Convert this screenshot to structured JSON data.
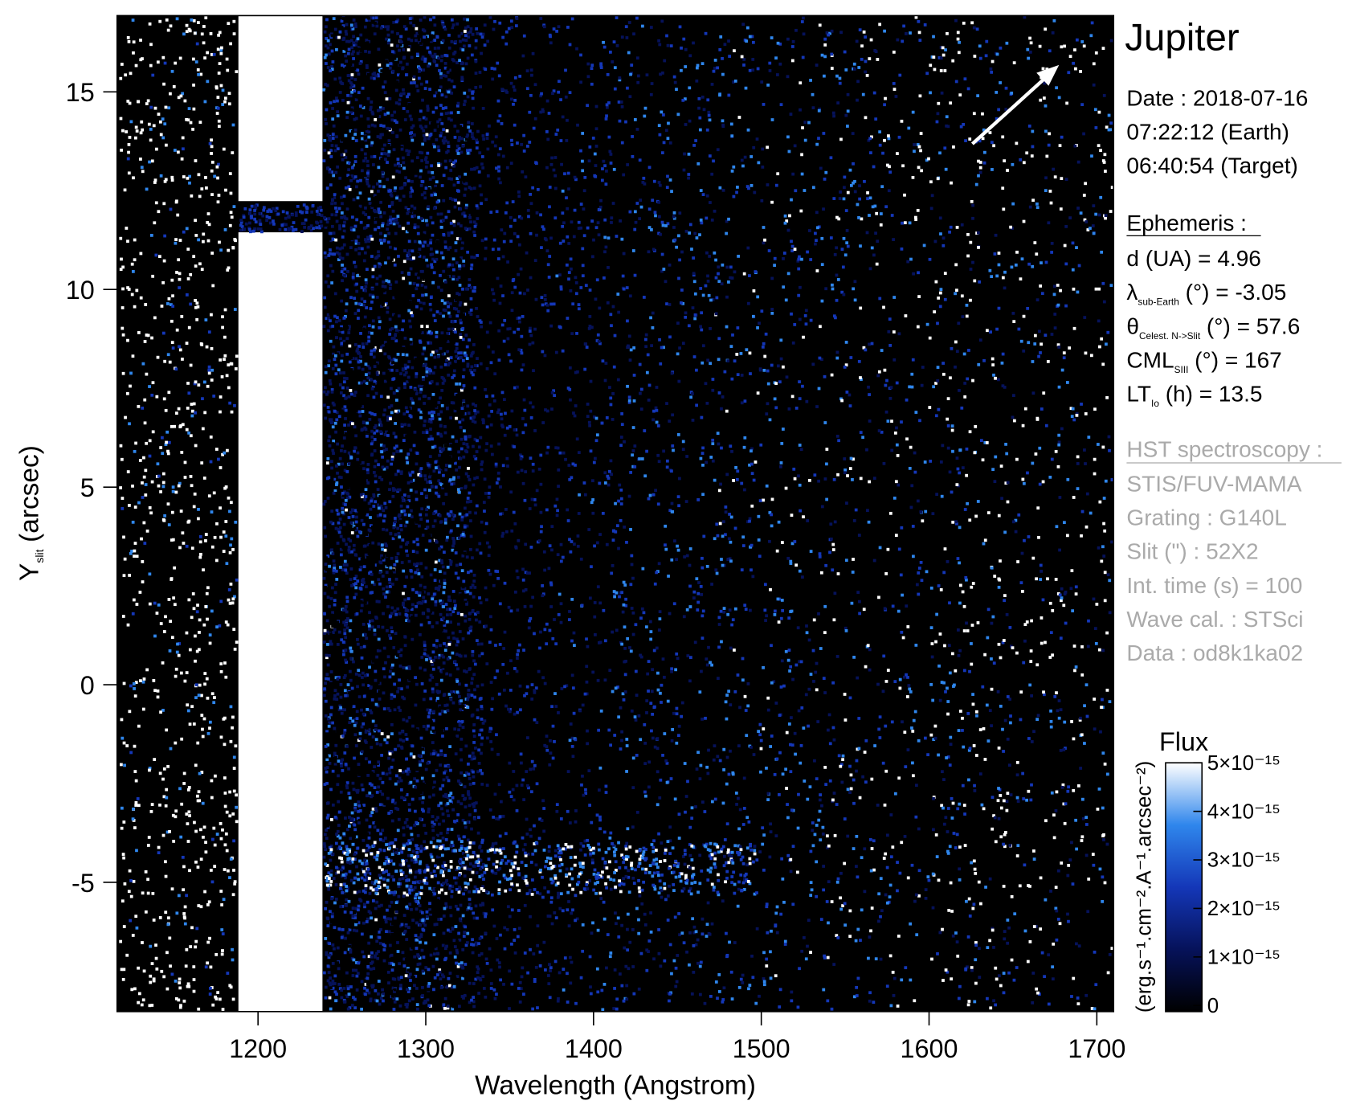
{
  "chart_data": {
    "type": "spectral-image",
    "xlabel": "Wavelength (Angstrom)",
    "ylabel": "Y",
    "ylabel_sub": "slit",
    "ylabel_unit": "(arcsec)",
    "xlim": [
      1116,
      1710
    ],
    "ylim": [
      -8.27,
      16.93
    ],
    "xticks": [
      1200,
      1300,
      1400,
      1500,
      1600,
      1700
    ],
    "yticks": [
      -5,
      0,
      5,
      10,
      15
    ],
    "colorbar": {
      "title": "Flux",
      "label": "(erg.s⁻¹.cm⁻².A⁻¹.arcsec⁻²)",
      "lim": [
        0,
        5e-15
      ],
      "ticks": [
        0,
        {
          "value": 1e-15,
          "label": "1×10⁻¹⁵"
        },
        {
          "value": 2e-15,
          "label": "2×10⁻¹⁵"
        },
        {
          "value": 3e-15,
          "label": "3×10⁻¹⁵"
        },
        {
          "value": 4e-15,
          "label": "4×10⁻¹⁵"
        },
        {
          "value": 5e-15,
          "label": "5×10⁻¹⁵"
        }
      ],
      "colors": [
        "#000000",
        "#06125a",
        "#1437b8",
        "#2f86ec",
        "#ffffff"
      ]
    }
  },
  "info": {
    "target": "Jupiter",
    "date": [
      "Date : 2018-07-16",
      "07:22:12 (Earth)",
      "06:40:54 (Target)"
    ],
    "ephemeris": {
      "title": "Ephemeris :",
      "rows": [
        {
          "text": "d (UA)     = 4.96"
        },
        {
          "sym": "λ",
          "sub": "sub-Earth",
          "rest": " (°)  = -3.05"
        },
        {
          "sym": "θ",
          "sub": "Celest. N->Slit",
          "rest": " (°) = 57.6"
        },
        {
          "sym": "CML",
          "sub": "SIII",
          "rest": " (°) = 167"
        },
        {
          "sym": "LT",
          "sub": "Io",
          "rest": " (h) = 13.5"
        }
      ]
    },
    "instrument": {
      "title": "HST spectroscopy :",
      "rows": [
        "STIS/FUV-MAMA",
        "Grating : G140L",
        "Slit (\") : 52X2",
        "Int. time (s) = 100",
        "Wave cal. : STSci",
        "Data : od8k1ka02"
      ]
    }
  }
}
